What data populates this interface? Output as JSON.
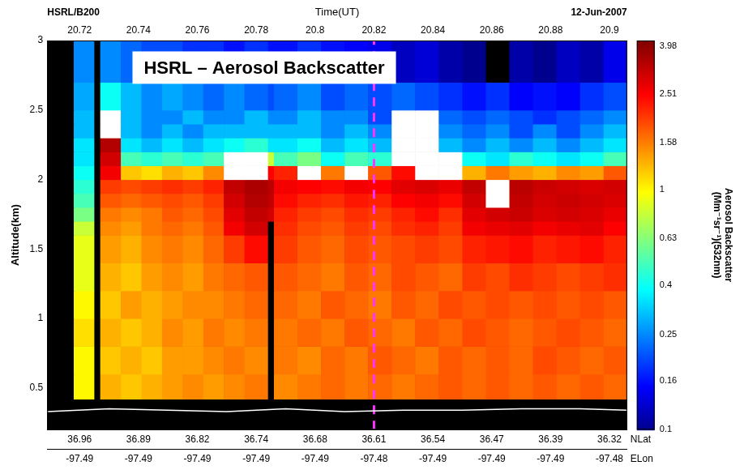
{
  "chart_data": {
    "type": "heatmap",
    "title": "HSRL – Aerosol Backscatter",
    "header_left": "HSRL/B200",
    "header_right": "12-Jun-2007",
    "x_label": "Time(UT)",
    "y_label": "Altitude(km)",
    "xlim": [
      20.709,
      20.906
    ],
    "xticks": [
      20.72,
      20.74,
      20.76,
      20.78,
      20.8,
      20.82,
      20.84,
      20.86,
      20.88,
      20.9
    ],
    "ylim": [
      0.2,
      3
    ],
    "yticks": [
      0.5,
      1,
      1.5,
      2,
      2.5,
      3
    ],
    "grid": false,
    "lat_axis": {
      "title": "NLat",
      "ticks": [
        {
          "value": 20.72,
          "label": "36.96"
        },
        {
          "value": 20.74,
          "label": "36.89"
        },
        {
          "value": 20.76,
          "label": "36.82"
        },
        {
          "value": 20.78,
          "label": "36.74"
        },
        {
          "value": 20.8,
          "label": "36.68"
        },
        {
          "value": 20.82,
          "label": "36.61"
        },
        {
          "value": 20.84,
          "label": "36.54"
        },
        {
          "value": 20.86,
          "label": "36.47"
        },
        {
          "value": 20.88,
          "label": "36.39"
        },
        {
          "value": 20.9,
          "label": "36.32"
        }
      ]
    },
    "lon_axis": {
      "title": "ELon",
      "ticks": [
        {
          "value": 20.72,
          "label": "-97.49"
        },
        {
          "value": 20.74,
          "label": "-97.49"
        },
        {
          "value": 20.76,
          "label": "-97.49"
        },
        {
          "value": 20.78,
          "label": "-97.49"
        },
        {
          "value": 20.8,
          "label": "-97.49"
        },
        {
          "value": 20.82,
          "label": "-97.48"
        },
        {
          "value": 20.84,
          "label": "-97.49"
        },
        {
          "value": 20.86,
          "label": "-97.49"
        },
        {
          "value": 20.88,
          "label": "-97.49"
        },
        {
          "value": 20.9,
          "label": "-97.48"
        }
      ]
    },
    "x_edges": [
      20.709,
      20.718,
      20.725,
      20.727,
      20.734,
      20.741,
      20.748,
      20.755,
      20.762,
      20.769,
      20.776,
      20.784,
      20.786,
      20.794,
      20.802,
      20.81,
      20.818,
      20.826,
      20.834,
      20.842,
      20.85,
      20.858,
      20.866,
      20.874,
      20.882,
      20.89,
      20.898,
      20.906
    ],
    "y_edges": [
      0.2,
      0.42,
      0.6,
      0.8,
      1.0,
      1.2,
      1.4,
      1.6,
      1.7,
      1.8,
      1.9,
      2.0,
      2.1,
      2.2,
      2.3,
      2.4,
      2.5,
      2.7,
      3.0
    ],
    "cells": [
      [
        null,
        null,
        null,
        null,
        null,
        null,
        null,
        null,
        null,
        null,
        null,
        null,
        null,
        null,
        null,
        null,
        null,
        null,
        null,
        null,
        null,
        null,
        null,
        null,
        null,
        null,
        null
      ],
      [
        null,
        1.0,
        null,
        1.3,
        1.2,
        1.3,
        1.4,
        1.5,
        1.4,
        1.5,
        1.6,
        null,
        1.5,
        1.6,
        1.7,
        1.6,
        1.7,
        1.6,
        1.7,
        1.8,
        1.7,
        1.8,
        1.7,
        1.8,
        1.7,
        1.8,
        1.7
      ],
      [
        null,
        1.0,
        null,
        1.2,
        1.3,
        1.2,
        1.4,
        1.4,
        1.5,
        1.6,
        1.5,
        null,
        1.6,
        1.5,
        1.7,
        1.6,
        1.8,
        1.7,
        1.6,
        1.8,
        1.7,
        1.8,
        1.7,
        1.9,
        1.8,
        1.7,
        1.8
      ],
      [
        null,
        1.1,
        null,
        1.3,
        1.2,
        1.3,
        1.5,
        1.4,
        1.6,
        1.5,
        1.6,
        null,
        1.6,
        1.7,
        1.6,
        1.8,
        1.7,
        1.6,
        1.8,
        1.7,
        1.9,
        1.8,
        1.7,
        1.8,
        1.9,
        1.8,
        1.7
      ],
      [
        null,
        1.0,
        null,
        1.2,
        1.4,
        1.3,
        1.4,
        1.5,
        1.5,
        1.6,
        1.7,
        null,
        1.7,
        1.6,
        1.8,
        1.7,
        1.6,
        1.8,
        1.7,
        1.9,
        1.8,
        1.9,
        1.8,
        1.9,
        1.8,
        1.9,
        1.8
      ],
      [
        null,
        0.9,
        null,
        1.3,
        1.2,
        1.4,
        1.5,
        1.4,
        1.6,
        1.7,
        1.8,
        null,
        1.8,
        1.7,
        1.6,
        1.8,
        1.7,
        1.9,
        1.8,
        1.7,
        2.0,
        1.9,
        2.1,
        2.0,
        1.9,
        2.0,
        2.1
      ],
      [
        null,
        0.9,
        null,
        1.4,
        1.3,
        1.5,
        1.6,
        1.5,
        1.7,
        2.0,
        2.4,
        null,
        2.0,
        1.8,
        1.7,
        1.9,
        1.8,
        1.9,
        2.0,
        1.9,
        2.2,
        2.3,
        2.4,
        2.2,
        2.3,
        2.4,
        2.2
      ],
      [
        null,
        0.8,
        null,
        1.5,
        1.4,
        1.6,
        1.7,
        1.6,
        1.8,
        2.6,
        3.0,
        null,
        2.1,
        1.9,
        1.8,
        2.0,
        1.9,
        2.1,
        2.2,
        2.0,
        2.6,
        2.7,
        2.8,
        2.6,
        2.7,
        2.8,
        2.5
      ],
      [
        null,
        0.6,
        null,
        1.6,
        1.5,
        1.6,
        1.8,
        1.7,
        1.9,
        2.8,
        3.2,
        3.0,
        2.2,
        2.0,
        1.9,
        2.1,
        2.0,
        2.2,
        2.4,
        2.1,
        2.8,
        3.0,
        3.1,
        2.9,
        3.0,
        2.9,
        2.7
      ],
      [
        null,
        0.5,
        null,
        1.8,
        1.7,
        1.8,
        1.9,
        1.8,
        2.0,
        3.0,
        3.4,
        3.2,
        2.4,
        2.2,
        2.1,
        2.3,
        2.2,
        2.5,
        2.6,
        2.4,
        3.0,
        6,
        3.2,
        3.0,
        3.1,
        3.0,
        2.9
      ],
      [
        null,
        0.45,
        null,
        2.0,
        1.9,
        2.0,
        2.1,
        2.0,
        2.2,
        3.2,
        3.5,
        3.3,
        2.6,
        2.5,
        2.4,
        2.6,
        2.5,
        2.8,
        2.9,
        2.7,
        3.2,
        6,
        3.3,
        3.1,
        3.0,
        2.9,
        3.0
      ],
      [
        null,
        0.4,
        null,
        2.6,
        1.2,
        1.1,
        1.3,
        1.2,
        1.5,
        6,
        6,
        2.5,
        2.2,
        6,
        1.6,
        6,
        1.8,
        2.4,
        6,
        6,
        1.3,
        1.6,
        1.4,
        1.3,
        1.5,
        1.4,
        1.8
      ],
      [
        null,
        0.35,
        null,
        3.0,
        0.5,
        0.45,
        0.5,
        0.45,
        0.5,
        6,
        6,
        0.8,
        0.5,
        0.6,
        0.4,
        0.5,
        0.45,
        6,
        6,
        6,
        0.4,
        0.35,
        0.45,
        0.4,
        0.35,
        0.4,
        0.5
      ],
      [
        null,
        0.35,
        null,
        3.4,
        0.35,
        0.3,
        0.35,
        0.3,
        0.35,
        0.4,
        0.45,
        0.35,
        0.35,
        0.4,
        0.3,
        0.35,
        0.3,
        6,
        6,
        0.3,
        0.25,
        0.3,
        0.25,
        0.3,
        0.25,
        0.3,
        0.35
      ],
      [
        null,
        0.3,
        null,
        6,
        0.3,
        0.25,
        0.3,
        0.25,
        0.3,
        0.3,
        0.3,
        0.3,
        0.3,
        0.3,
        0.25,
        0.3,
        0.25,
        6,
        6,
        0.25,
        0.22,
        0.25,
        0.2,
        0.25,
        0.2,
        0.25,
        0.3
      ],
      [
        null,
        0.3,
        null,
        6,
        0.3,
        0.25,
        0.25,
        0.3,
        0.25,
        0.25,
        0.3,
        0.25,
        0.25,
        0.3,
        0.25,
        0.25,
        0.2,
        6,
        6,
        0.22,
        0.2,
        0.22,
        0.2,
        0.18,
        0.2,
        0.22,
        0.25
      ],
      [
        null,
        0.28,
        null,
        0.4,
        0.3,
        0.25,
        0.28,
        0.25,
        0.22,
        0.25,
        0.22,
        0.2,
        0.22,
        0.25,
        0.2,
        0.22,
        0.2,
        0.22,
        0.2,
        0.18,
        0.16,
        0.18,
        0.15,
        0.16,
        0.15,
        0.18,
        0.2
      ],
      [
        null,
        0.25,
        null,
        0.25,
        0.22,
        0.2,
        0.2,
        0.18,
        0.18,
        0.16,
        0.18,
        0.16,
        0.16,
        0.18,
        0.16,
        0.15,
        0.14,
        0.12,
        0.13,
        0.11,
        0.1,
        null,
        0.11,
        0.1,
        0.12,
        0.11,
        0.14
      ]
    ],
    "colorbar": {
      "title": [
        "Aerosol Backscatter",
        "(Mm⁻¹sr⁻¹)(532nm)"
      ],
      "log": true,
      "lim": [
        0.1,
        4.2
      ],
      "ticks": [
        0.1,
        0.16,
        0.25,
        0.4,
        0.63,
        1,
        1.58,
        2.51,
        3.98
      ]
    },
    "ground": {
      "x": [
        20.709,
        20.73,
        20.75,
        20.77,
        20.79,
        20.81,
        20.83,
        20.85,
        20.87,
        20.89,
        20.906
      ],
      "values": [
        0.33,
        0.35,
        0.34,
        0.33,
        0.35,
        0.33,
        0.34,
        0.34,
        0.35,
        0.35,
        0.34
      ],
      "color": "#ffffff"
    },
    "vline": {
      "x": 20.82,
      "color": "#ff33ff",
      "line_style": "dashed"
    }
  }
}
